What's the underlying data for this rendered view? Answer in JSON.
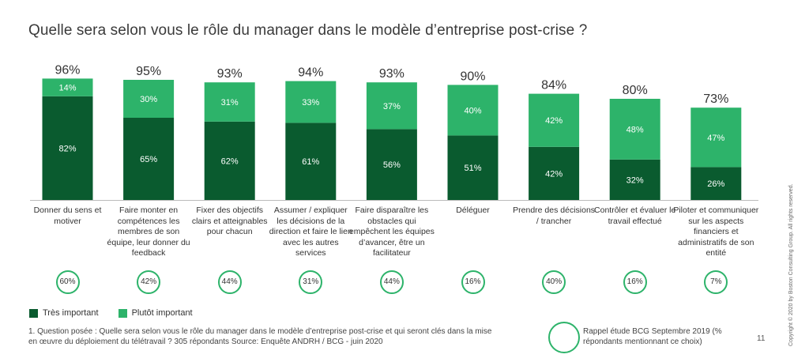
{
  "title": "Quelle sera selon vous le rôle du manager dans le modèle d’entreprise post-crise ?",
  "colors": {
    "tres": "#0a5b2f",
    "plutot": "#2db36a",
    "circle": "#2db36a"
  },
  "chart_data": {
    "type": "bar",
    "stacked": true,
    "categories": [
      "Donner du sens et motiver",
      "Faire monter en compétences les membres de son équipe, leur donner du feedback",
      "Fixer des objectifs clairs et atteignables pour chacun",
      "Assumer / expliquer les décisions de la direction et faire le lien avec les autres services",
      "Faire disparaître les obstacles qui empêchent les équipes d’avancer, être un facilitateur",
      "Déléguer",
      "Prendre des décisions / trancher",
      "Contrôler et évaluer le travail effectué",
      "Piloter et communiquer sur les aspects financiers et administratifs de son entité"
    ],
    "series": [
      {
        "name": "Très important",
        "values": [
          82,
          65,
          62,
          61,
          56,
          51,
          42,
          32,
          26
        ],
        "labels": [
          "82%",
          "65%",
          "62%",
          "61%",
          "56%",
          "51%",
          "42%",
          "32%",
          "26%"
        ]
      },
      {
        "name": "Plutôt important",
        "values": [
          14,
          30,
          31,
          33,
          37,
          40,
          42,
          48,
          47
        ],
        "labels": [
          "14%",
          "30%",
          "31%",
          "33%",
          "37%",
          "40%",
          "42%",
          "48%",
          "47%"
        ]
      }
    ],
    "totals": [
      "96%",
      "95%",
      "93%",
      "94%",
      "93%",
      "90%",
      "84%",
      "80%",
      "73%"
    ],
    "recall": [
      "60%",
      "42%",
      "44%",
      "31%",
      "44%",
      "16%",
      "40%",
      "16%",
      "7%"
    ],
    "ylim": [
      0,
      100
    ]
  },
  "legend": {
    "tres": "Très important",
    "plutot": "Plutôt important"
  },
  "footnote": "1. Question posée : Quelle sera selon vous le rôle du manager dans le modèle d’entreprise post-crise et qui seront clés dans la mise en œuvre du déploiement du télétravail ? 305 répondants  Source: Enquête ANDRH / BCG - juin 2020",
  "recall_legend": "Rappel étude BCG Septembre 2019 (% répondants mentionnant ce choix)",
  "page_number": "11",
  "copyright": "Copyright © 2020 by Boston Consulting Group. All rights reserved."
}
